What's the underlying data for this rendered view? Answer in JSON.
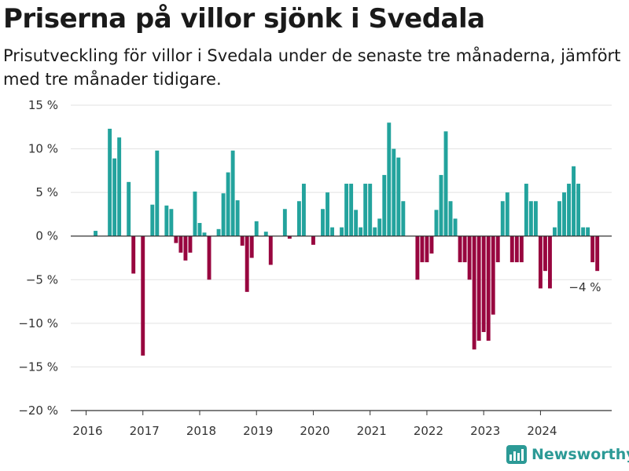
{
  "title": "Priserna på villor sjönk i Svedala",
  "subtitle": "Prisutveckling för villor i Svedala under de senaste tre månaderna, jämfört med tre månader tidigare.",
  "annotation": "−4 %",
  "brand": "Newsworthy",
  "colors": {
    "positive": "#23a39d",
    "negative": "#98063f",
    "grid": "#e2e2e2",
    "axis": "#333333",
    "brand": "#2c9a96"
  },
  "chart_data": {
    "type": "bar",
    "title": "Priserna på villor sjönk i Svedala",
    "ylabel": "",
    "xlabel": "",
    "ylim": [
      -20,
      15
    ],
    "yticks": [
      15,
      10,
      5,
      0,
      -5,
      -10,
      -15,
      -20
    ],
    "ytick_labels": [
      "15 %",
      "10 %",
      "5 %",
      "0 %",
      "−5 %",
      "−10 %",
      "−15 %",
      "−20 %"
    ],
    "xticks": [
      "2016",
      "2017",
      "2018",
      "2019",
      "2020",
      "2021",
      "2022",
      "2023",
      "2024"
    ],
    "start": "2016-01",
    "grid": true,
    "legend": "none",
    "values": [
      null,
      null,
      0.6,
      null,
      null,
      12.3,
      8.9,
      11.3,
      null,
      6.2,
      -4.3,
      null,
      -13.7,
      null,
      3.6,
      9.8,
      null,
      3.5,
      3.1,
      -0.8,
      -1.9,
      -2.8,
      -1.9,
      5.1,
      1.5,
      0.4,
      -5.0,
      null,
      0.8,
      4.9,
      7.3,
      9.8,
      4.1,
      -1.1,
      -6.4,
      -2.5,
      1.7,
      null,
      0.5,
      -3.3,
      null,
      null,
      3.1,
      -0.3,
      null,
      4.0,
      6.0,
      null,
      -1.0,
      null,
      3.1,
      5.0,
      1.0,
      null,
      1.0,
      6.0,
      6.0,
      3.0,
      1.0,
      6.0,
      6.0,
      1.0,
      2.0,
      7.0,
      13.0,
      10.0,
      9.0,
      4.0,
      null,
      null,
      -5.0,
      -3.0,
      -3.0,
      -2.0,
      3.0,
      7.0,
      12.0,
      4.0,
      2.0,
      -3.0,
      -3.0,
      -5.0,
      -13.0,
      -12.0,
      -11.0,
      -12.0,
      -9.0,
      -3.0,
      4.0,
      5.0,
      -3.0,
      -3.0,
      -3.0,
      6.0,
      4.0,
      4.0,
      -6.0,
      -4.0,
      -6.0,
      1.0,
      4.0,
      5.0,
      6.0,
      8.0,
      6.0,
      1.0,
      1.0,
      -3.0,
      -4.0
    ]
  }
}
